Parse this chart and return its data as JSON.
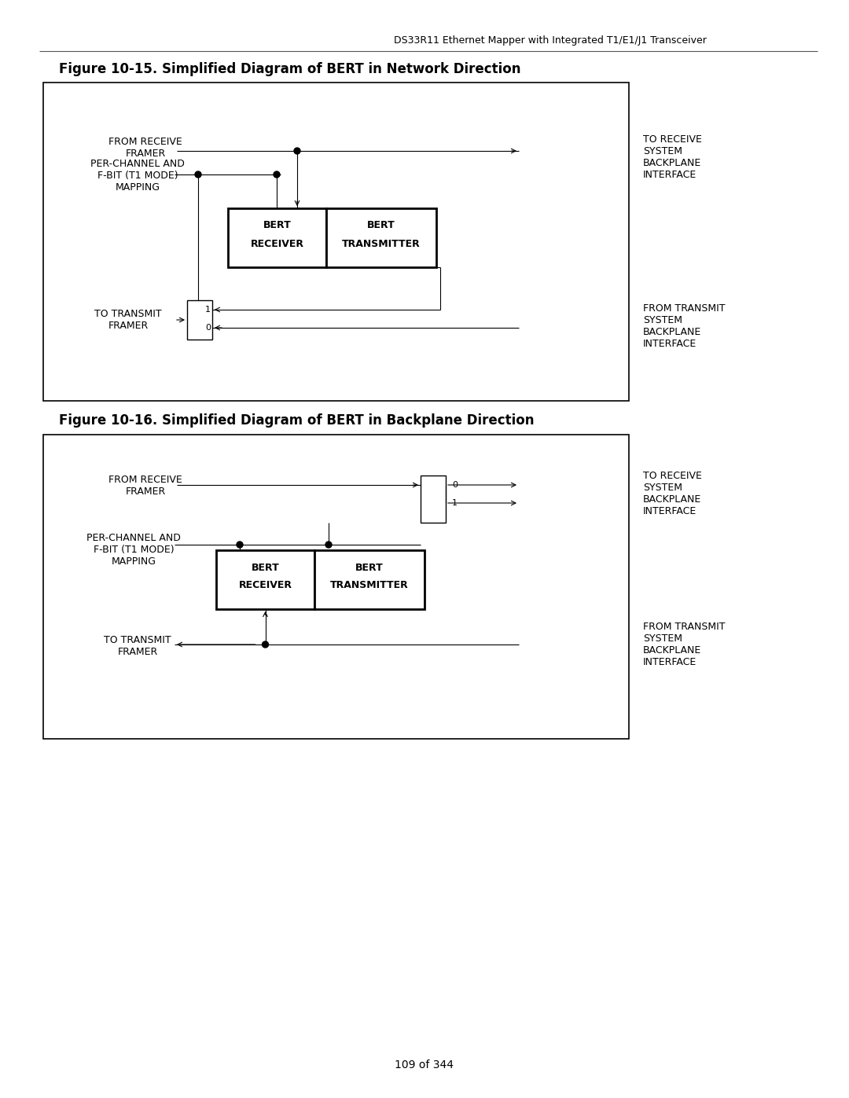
{
  "header_text": "DS33R11 Ethernet Mapper with Integrated T1/E1/J1 Transceiver",
  "fig1_title": "Figure 10-15. Simplified Diagram of BERT in Network Direction",
  "fig2_title": "Figure 10-16. Simplified Diagram of BERT in Backplane Direction",
  "footer_text": "109 of 344",
  "bg_color": "#ffffff"
}
